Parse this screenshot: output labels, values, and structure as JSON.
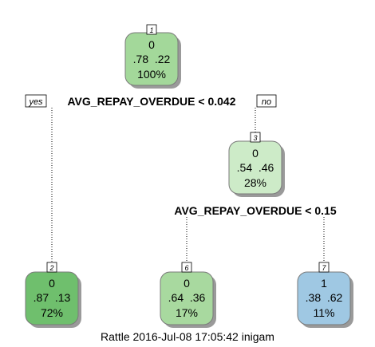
{
  "colors": {
    "node_1": "#a3d89a",
    "node_3": "#cdebc8",
    "node_2": "#6fbf6d",
    "node_6": "#a8d99f",
    "node_7": "#9fc8e3"
  },
  "nodes": [
    {
      "id": "1",
      "class": "0",
      "probs": ".78  .22",
      "pct": "100%"
    },
    {
      "id": "3",
      "class": "0",
      "probs": ".54  .46",
      "pct": "28%"
    },
    {
      "id": "2",
      "class": "0",
      "probs": ".87  .13",
      "pct": "72%"
    },
    {
      "id": "6",
      "class": "0",
      "probs": ".64  .36",
      "pct": "17%"
    },
    {
      "id": "7",
      "class": "1",
      "probs": ".38  .62",
      "pct": "11%"
    }
  ],
  "splits": {
    "root": "AVG_REPAY_OVERDUE < 0.042",
    "node3": "AVG_REPAY_OVERDUE < 0.15"
  },
  "branch_labels": {
    "yes": "yes",
    "no": "no"
  },
  "footer": "Rattle 2016-Jul-08 17:05:42 inigam"
}
